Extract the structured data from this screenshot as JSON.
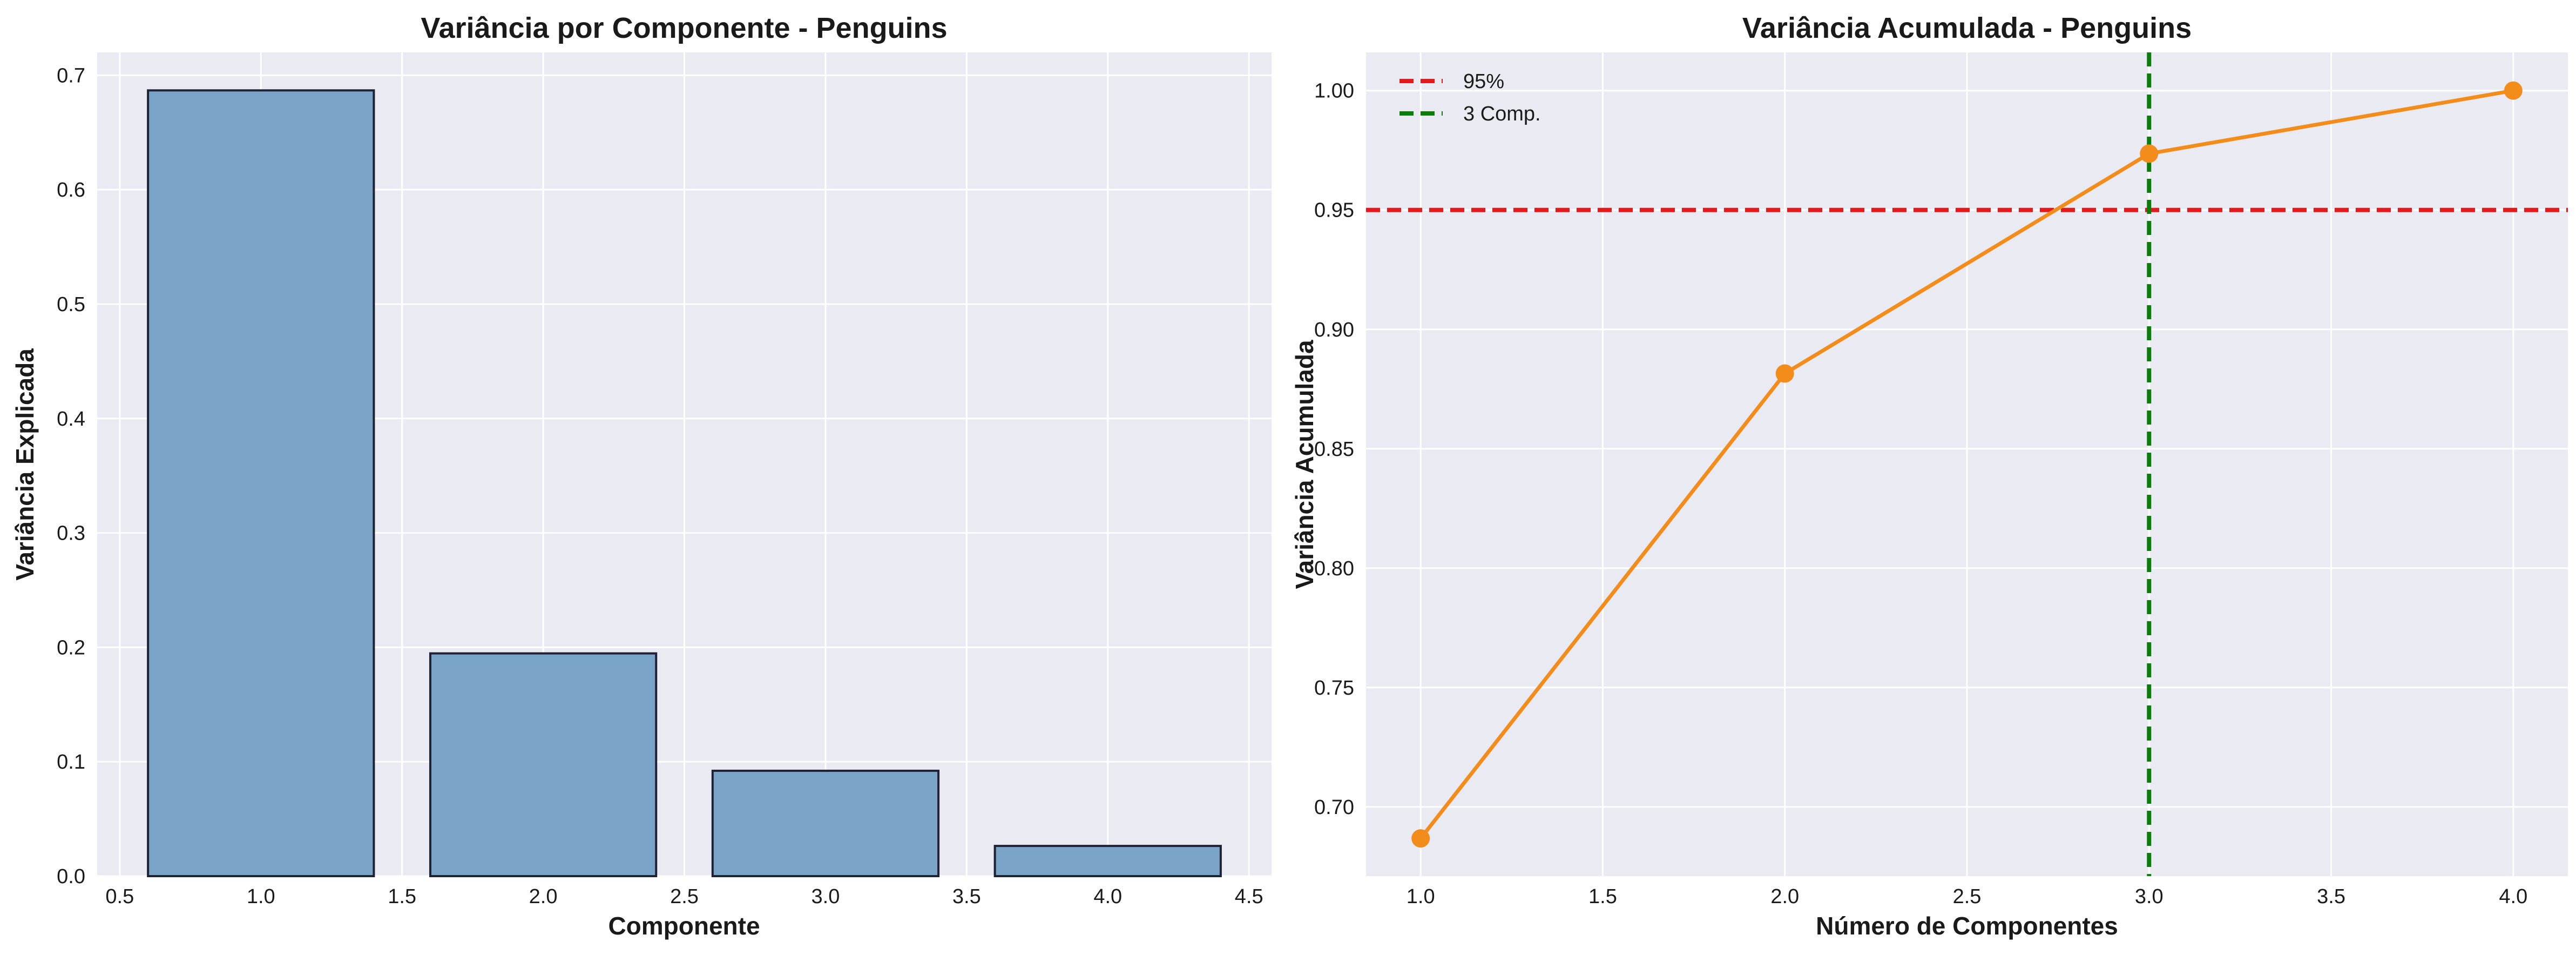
{
  "colors": {
    "plot_bg": "#eaeaf2",
    "grid": "#ffffff",
    "bar_fill": "#7aa3c8",
    "bar_edge": "#1f2233",
    "line": "#f28c1a",
    "threshold": "#e31a1c",
    "vertical": "#0a7d0a"
  },
  "chart_data": [
    {
      "type": "bar",
      "title": "Variância por Componente - Penguins",
      "xlabel": "Componente",
      "ylabel": "Variância Explicada",
      "x": [
        1,
        2,
        3,
        4
      ],
      "values": [
        0.6868,
        0.1947,
        0.0921,
        0.0264
      ],
      "bar_width": 0.8,
      "xlim": [
        0.42,
        4.58
      ],
      "ylim": [
        0,
        0.72
      ],
      "xticks": [
        0.5,
        1.0,
        1.5,
        2.0,
        2.5,
        3.0,
        3.5,
        4.0,
        4.5
      ],
      "xtick_labels": [
        "0.5",
        "1.0",
        "1.5",
        "2.0",
        "2.5",
        "3.0",
        "3.5",
        "4.0",
        "4.5"
      ],
      "yticks": [
        0.0,
        0.1,
        0.2,
        0.3,
        0.4,
        0.5,
        0.6,
        0.7
      ],
      "ytick_labels": [
        "0.0",
        "0.1",
        "0.2",
        "0.3",
        "0.4",
        "0.5",
        "0.6",
        "0.7"
      ],
      "grid": true
    },
    {
      "type": "line",
      "title": "Variância Acumulada - Penguins",
      "xlabel": "Número de Componentes",
      "ylabel": "Variância Acumulada",
      "x": [
        1,
        2,
        3,
        4
      ],
      "y": [
        0.6868,
        0.8815,
        0.9736,
        1.0
      ],
      "xlim": [
        0.85,
        4.15
      ],
      "ylim": [
        0.671,
        1.016
      ],
      "xticks": [
        1.0,
        1.5,
        2.0,
        2.5,
        3.0,
        3.5,
        4.0
      ],
      "xtick_labels": [
        "1.0",
        "1.5",
        "2.0",
        "2.5",
        "3.0",
        "3.5",
        "4.0"
      ],
      "yticks": [
        0.7,
        0.75,
        0.8,
        0.85,
        0.9,
        0.95,
        1.0
      ],
      "ytick_labels": [
        "0.70",
        "0.75",
        "0.80",
        "0.85",
        "0.90",
        "0.95",
        "1.00"
      ],
      "hline": {
        "y": 0.95,
        "label": "95%"
      },
      "vline": {
        "x": 3,
        "label": "3 Comp."
      },
      "legend_position": "top-left",
      "grid": true
    }
  ]
}
